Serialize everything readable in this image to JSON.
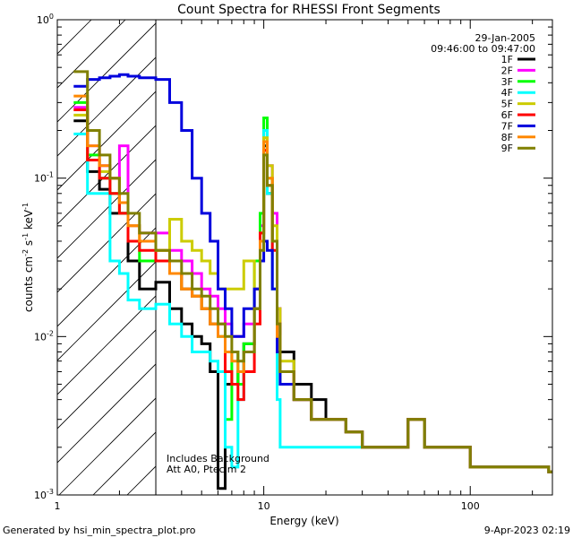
{
  "chart_data": {
    "type": "line",
    "title": "Count Spectra for RHESSI Front Segments",
    "xlabel": "Energy (keV)",
    "ylabel_parts": [
      "counts cm",
      "-2",
      " s",
      "-1",
      " keV",
      "-1"
    ],
    "xscale": "log",
    "yscale": "log",
    "xlim": [
      1,
      250
    ],
    "ylim": [
      0.001,
      1
    ],
    "x_ticks": [
      {
        "value": 1,
        "label": "1"
      },
      {
        "value": 10,
        "label": "10"
      },
      {
        "value": 100,
        "label": "100"
      }
    ],
    "y_ticks": [
      {
        "value": 1,
        "base": "10",
        "exp": "0"
      },
      {
        "value": 0.1,
        "base": "10",
        "exp": "-1"
      },
      {
        "value": 0.01,
        "base": "10",
        "exp": "-2"
      },
      {
        "value": 0.001,
        "base": "10",
        "exp": "-3"
      }
    ],
    "date": "29-Jan-2005",
    "time_range": "09:46:00 to 09:47:00",
    "annotations": [
      "Includes Background",
      "Att A0, Ptecim 2"
    ],
    "hatched_region_xmax": 3,
    "legend_position": "right",
    "series": [
      {
        "name": "1F",
        "color": "#000000",
        "x": [
          1.2,
          1.4,
          1.6,
          1.8,
          2.0,
          2.2,
          2.5,
          3.0,
          3.5,
          4.0,
          4.5,
          5.0,
          5.5,
          6.0,
          6.5,
          7.0,
          7.5,
          8.0,
          9.0,
          9.6,
          10.0,
          10.4,
          11.0,
          11.6,
          12.0,
          14,
          17,
          20,
          25,
          30,
          40,
          50,
          60,
          80,
          100,
          130,
          160,
          200,
          240
        ],
        "values": [
          0.23,
          0.11,
          0.085,
          0.06,
          0.06,
          0.03,
          0.02,
          0.022,
          0.015,
          0.012,
          0.01,
          0.009,
          0.006,
          0.0011,
          0.005,
          0.005,
          0.006,
          0.009,
          0.015,
          0.04,
          0.16,
          0.08,
          0.04,
          0.015,
          0.008,
          0.005,
          0.004,
          0.003,
          0.0025,
          0.002,
          0.002,
          0.003,
          0.002,
          0.002,
          0.0015,
          0.0015,
          0.0015,
          0.0015,
          0.0014
        ]
      },
      {
        "name": "2F",
        "color": "#ff00ff",
        "x": [
          1.2,
          1.4,
          1.6,
          1.8,
          2.0,
          2.2,
          2.5,
          3.0,
          3.5,
          4.0,
          4.5,
          5.0,
          5.5,
          6.0,
          6.5,
          7.0,
          7.5,
          8.0,
          9.0,
          9.6,
          10.0,
          10.4,
          11.0,
          11.6,
          12.0,
          14,
          17,
          20,
          25,
          30,
          40,
          50,
          60,
          80,
          100,
          130,
          160,
          200,
          240
        ],
        "values": [
          0.28,
          0.16,
          0.12,
          0.1,
          0.16,
          0.05,
          0.045,
          0.045,
          0.035,
          0.03,
          0.025,
          0.02,
          0.018,
          0.015,
          0.012,
          0.01,
          0.01,
          0.012,
          0.02,
          0.05,
          0.2,
          0.12,
          0.06,
          0.015,
          0.006,
          0.004,
          0.003,
          0.003,
          0.0025,
          0.002,
          0.002,
          0.003,
          0.002,
          0.002,
          0.0015,
          0.0015,
          0.0015,
          0.0015,
          0.0014
        ]
      },
      {
        "name": "3F",
        "color": "#00ff00",
        "x": [
          1.2,
          1.4,
          1.6,
          1.8,
          2.0,
          2.2,
          2.5,
          3.0,
          3.5,
          4.0,
          4.5,
          5.0,
          5.5,
          6.0,
          6.5,
          7.0,
          7.5,
          8.0,
          9.0,
          9.6,
          10.0,
          10.4,
          11.0,
          11.6,
          12.0,
          14,
          17,
          20,
          25,
          30,
          40,
          50,
          60,
          80,
          100,
          130,
          160,
          200,
          240
        ],
        "values": [
          0.3,
          0.14,
          0.1,
          0.08,
          0.06,
          0.04,
          0.03,
          0.03,
          0.025,
          0.02,
          0.018,
          0.015,
          0.012,
          0.01,
          0.003,
          0.008,
          0.005,
          0.009,
          0.03,
          0.06,
          0.24,
          0.1,
          0.04,
          0.01,
          0.005,
          0.004,
          0.003,
          0.003,
          0.0025,
          0.002,
          0.002,
          0.003,
          0.002,
          0.002,
          0.0015,
          0.0015,
          0.0015,
          0.0015,
          0.0014
        ]
      },
      {
        "name": "4F",
        "color": "#00ffff",
        "x": [
          1.2,
          1.4,
          1.6,
          1.8,
          2.0,
          2.2,
          2.5,
          3.0,
          3.5,
          4.0,
          4.5,
          5.0,
          5.5,
          6.0,
          6.5,
          7.0,
          7.5,
          8.0,
          9.0,
          9.6,
          10.0,
          10.4,
          11.0,
          11.6,
          12.0,
          14,
          17,
          20,
          25,
          30,
          40,
          50,
          60,
          80,
          100,
          130,
          160,
          200,
          240
        ],
        "values": [
          0.19,
          0.08,
          0.08,
          0.03,
          0.025,
          0.017,
          0.015,
          0.016,
          0.012,
          0.01,
          0.008,
          0.008,
          0.007,
          0.006,
          0.002,
          0.0015,
          0.004,
          0.008,
          0.015,
          0.04,
          0.2,
          0.08,
          0.02,
          0.004,
          0.002,
          0.002,
          0.002,
          0.002,
          0.002,
          0.002,
          0.002,
          0.003,
          0.002,
          0.002,
          0.0015,
          0.0015,
          0.0015,
          0.0015,
          0.0014
        ]
      },
      {
        "name": "5F",
        "color": "#cccc00",
        "x": [
          1.2,
          1.4,
          1.6,
          1.8,
          2.0,
          2.2,
          2.5,
          3.0,
          3.5,
          4.0,
          4.5,
          5.0,
          5.5,
          6.0,
          6.5,
          7.0,
          7.5,
          8.0,
          9.0,
          9.6,
          10.0,
          10.4,
          11.0,
          11.6,
          12.0,
          14,
          17,
          20,
          25,
          30,
          40,
          50,
          60,
          80,
          100,
          130,
          160,
          200,
          240
        ],
        "values": [
          0.25,
          0.13,
          0.11,
          0.1,
          0.07,
          0.05,
          0.04,
          0.035,
          0.055,
          0.04,
          0.035,
          0.03,
          0.025,
          0.02,
          0.02,
          0.02,
          0.02,
          0.03,
          0.02,
          0.045,
          0.18,
          0.12,
          0.05,
          0.015,
          0.007,
          0.004,
          0.003,
          0.003,
          0.0025,
          0.002,
          0.002,
          0.003,
          0.002,
          0.002,
          0.0015,
          0.0015,
          0.0015,
          0.0015,
          0.0014
        ]
      },
      {
        "name": "6F",
        "color": "#ff0000",
        "x": [
          1.2,
          1.4,
          1.6,
          1.8,
          2.0,
          2.2,
          2.5,
          3.0,
          3.5,
          4.0,
          4.5,
          5.0,
          5.5,
          6.0,
          6.5,
          7.0,
          7.5,
          8.0,
          9.0,
          9.6,
          10.0,
          10.4,
          11.0,
          11.6,
          12.0,
          14,
          17,
          20,
          25,
          30,
          40,
          50,
          60,
          80,
          100,
          130,
          160,
          200,
          240
        ],
        "values": [
          0.27,
          0.13,
          0.1,
          0.08,
          0.06,
          0.04,
          0.035,
          0.03,
          0.025,
          0.02,
          0.018,
          0.015,
          0.012,
          0.012,
          0.006,
          0.005,
          0.004,
          0.006,
          0.012,
          0.045,
          0.15,
          0.09,
          0.035,
          0.012,
          0.006,
          0.004,
          0.003,
          0.003,
          0.0025,
          0.002,
          0.002,
          0.003,
          0.002,
          0.002,
          0.0015,
          0.0015,
          0.0015,
          0.0015,
          0.0014
        ]
      },
      {
        "name": "7F",
        "color": "#0000dd",
        "x": [
          1.2,
          1.4,
          1.6,
          1.8,
          2.0,
          2.2,
          2.5,
          3.0,
          3.5,
          4.0,
          4.5,
          5.0,
          5.5,
          6.0,
          6.5,
          7.0,
          7.5,
          8.0,
          9.0,
          9.6,
          10.0,
          10.4,
          11.0,
          11.6,
          12.0,
          14,
          17,
          20,
          25,
          30,
          40,
          50,
          60,
          80,
          100,
          130,
          160,
          200,
          240
        ],
        "values": [
          0.38,
          0.42,
          0.43,
          0.44,
          0.45,
          0.44,
          0.43,
          0.42,
          0.3,
          0.2,
          0.1,
          0.06,
          0.04,
          0.02,
          0.015,
          0.01,
          0.01,
          0.015,
          0.02,
          0.03,
          0.04,
          0.035,
          0.02,
          0.008,
          0.005,
          0.004,
          0.003,
          0.003,
          0.0025,
          0.002,
          0.002,
          0.003,
          0.002,
          0.002,
          0.0015,
          0.0015,
          0.0015,
          0.0015,
          0.0014
        ]
      },
      {
        "name": "8F",
        "color": "#ff8800",
        "x": [
          1.2,
          1.4,
          1.6,
          1.8,
          2.0,
          2.2,
          2.5,
          3.0,
          3.5,
          4.0,
          4.5,
          5.0,
          5.5,
          6.0,
          6.5,
          7.0,
          7.5,
          8.0,
          9.0,
          9.6,
          10.0,
          10.4,
          11.0,
          11.6,
          12.0,
          14,
          17,
          20,
          25,
          30,
          40,
          50,
          60,
          80,
          100,
          130,
          160,
          200,
          240
        ],
        "values": [
          0.33,
          0.16,
          0.12,
          0.1,
          0.07,
          0.05,
          0.04,
          0.035,
          0.025,
          0.02,
          0.018,
          0.015,
          0.012,
          0.01,
          0.008,
          0.007,
          0.006,
          0.008,
          0.015,
          0.04,
          0.17,
          0.1,
          0.04,
          0.01,
          0.006,
          0.004,
          0.003,
          0.003,
          0.0025,
          0.002,
          0.002,
          0.003,
          0.002,
          0.002,
          0.0015,
          0.0015,
          0.0015,
          0.0015,
          0.0014
        ]
      },
      {
        "name": "9F",
        "color": "#808000",
        "x": [
          1.2,
          1.4,
          1.6,
          1.8,
          2.0,
          2.2,
          2.5,
          3.0,
          3.5,
          4.0,
          4.5,
          5.0,
          5.5,
          6.0,
          6.5,
          7.0,
          7.5,
          8.0,
          9.0,
          9.6,
          10.0,
          10.4,
          11.0,
          11.6,
          12.0,
          14,
          17,
          20,
          25,
          30,
          40,
          50,
          60,
          80,
          100,
          130,
          160,
          200,
          240
        ],
        "values": [
          0.47,
          0.2,
          0.14,
          0.1,
          0.08,
          0.06,
          0.045,
          0.035,
          0.03,
          0.025,
          0.02,
          0.018,
          0.015,
          0.012,
          0.01,
          0.008,
          0.007,
          0.008,
          0.015,
          0.035,
          0.14,
          0.09,
          0.04,
          0.012,
          0.006,
          0.004,
          0.003,
          0.003,
          0.0025,
          0.002,
          0.002,
          0.003,
          0.002,
          0.002,
          0.0015,
          0.0015,
          0.0015,
          0.0015,
          0.0014
        ]
      }
    ]
  },
  "footer": {
    "generated_by": "Generated by hsi_min_spectra_plot.pro",
    "timestamp": "9-Apr-2023 02:19"
  }
}
